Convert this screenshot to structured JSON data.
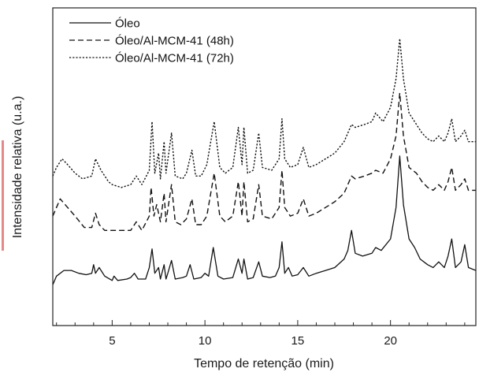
{
  "chart_data": {
    "type": "line",
    "title": "",
    "xlabel": "Tempo de retenção (min)",
    "ylabel": "Intensidade relativa (u.a.)",
    "xlim": [
      1.8,
      24.6
    ],
    "ylim": [
      0,
      1
    ],
    "x_ticks": [
      5,
      10,
      15,
      20
    ],
    "y_ticks_shown": false,
    "legend_position": "top-left",
    "series": [
      {
        "name": "Óleo",
        "style": "solid",
        "points": [
          [
            1.8,
            0.06
          ],
          [
            2.0,
            0.09
          ],
          [
            2.4,
            0.11
          ],
          [
            2.8,
            0.11
          ],
          [
            3.2,
            0.1
          ],
          [
            3.6,
            0.095
          ],
          [
            3.9,
            0.1
          ],
          [
            4.0,
            0.13
          ],
          [
            4.1,
            0.1
          ],
          [
            4.3,
            0.12
          ],
          [
            4.6,
            0.09
          ],
          [
            5.0,
            0.075
          ],
          [
            5.1,
            0.09
          ],
          [
            5.3,
            0.075
          ],
          [
            5.8,
            0.08
          ],
          [
            6.0,
            0.085
          ],
          [
            6.2,
            0.1
          ],
          [
            6.4,
            0.08
          ],
          [
            6.8,
            0.08
          ],
          [
            7.0,
            0.12
          ],
          [
            7.15,
            0.185
          ],
          [
            7.3,
            0.1
          ],
          [
            7.5,
            0.12
          ],
          [
            7.6,
            0.08
          ],
          [
            7.8,
            0.13
          ],
          [
            7.9,
            0.08
          ],
          [
            8.0,
            0.1
          ],
          [
            8.2,
            0.145
          ],
          [
            8.4,
            0.08
          ],
          [
            8.8,
            0.085
          ],
          [
            9.0,
            0.09
          ],
          [
            9.2,
            0.13
          ],
          [
            9.4,
            0.08
          ],
          [
            9.8,
            0.085
          ],
          [
            10.0,
            0.1
          ],
          [
            10.2,
            0.09
          ],
          [
            10.45,
            0.19
          ],
          [
            10.7,
            0.09
          ],
          [
            11.0,
            0.08
          ],
          [
            11.5,
            0.085
          ],
          [
            11.8,
            0.15
          ],
          [
            12.0,
            0.1
          ],
          [
            12.1,
            0.15
          ],
          [
            12.3,
            0.08
          ],
          [
            12.6,
            0.085
          ],
          [
            12.9,
            0.14
          ],
          [
            13.1,
            0.09
          ],
          [
            13.5,
            0.085
          ],
          [
            13.8,
            0.09
          ],
          [
            14.0,
            0.12
          ],
          [
            14.15,
            0.21
          ],
          [
            14.3,
            0.1
          ],
          [
            14.5,
            0.12
          ],
          [
            14.7,
            0.09
          ],
          [
            15.0,
            0.095
          ],
          [
            15.3,
            0.12
          ],
          [
            15.6,
            0.09
          ],
          [
            16.0,
            0.1
          ],
          [
            16.5,
            0.11
          ],
          [
            17.0,
            0.12
          ],
          [
            17.5,
            0.15
          ],
          [
            17.7,
            0.18
          ],
          [
            17.9,
            0.25
          ],
          [
            18.1,
            0.17
          ],
          [
            18.5,
            0.16
          ],
          [
            19.0,
            0.17
          ],
          [
            19.2,
            0.19
          ],
          [
            19.5,
            0.18
          ],
          [
            20.0,
            0.22
          ],
          [
            20.3,
            0.33
          ],
          [
            20.5,
            0.51
          ],
          [
            20.7,
            0.34
          ],
          [
            21.0,
            0.22
          ],
          [
            21.3,
            0.19
          ],
          [
            21.6,
            0.15
          ],
          [
            22.0,
            0.13
          ],
          [
            22.3,
            0.12
          ],
          [
            22.6,
            0.14
          ],
          [
            22.9,
            0.12
          ],
          [
            23.1,
            0.16
          ],
          [
            23.3,
            0.22
          ],
          [
            23.5,
            0.12
          ],
          [
            23.8,
            0.14
          ],
          [
            24.0,
            0.2
          ],
          [
            24.2,
            0.12
          ],
          [
            24.6,
            0.11
          ]
        ]
      },
      {
        "name": "Óleo/Al-MCM-41 (48h)",
        "style": "dashed",
        "points": [
          [
            1.8,
            0.3
          ],
          [
            2.0,
            0.33
          ],
          [
            2.2,
            0.36
          ],
          [
            2.6,
            0.33
          ],
          [
            3.0,
            0.3
          ],
          [
            3.5,
            0.26
          ],
          [
            3.9,
            0.26
          ],
          [
            4.1,
            0.31
          ],
          [
            4.3,
            0.27
          ],
          [
            4.6,
            0.25
          ],
          [
            5.0,
            0.25
          ],
          [
            5.4,
            0.25
          ],
          [
            6.0,
            0.25
          ],
          [
            6.3,
            0.28
          ],
          [
            6.6,
            0.25
          ],
          [
            7.0,
            0.3
          ],
          [
            7.1,
            0.4
          ],
          [
            7.25,
            0.3
          ],
          [
            7.4,
            0.34
          ],
          [
            7.6,
            0.28
          ],
          [
            7.8,
            0.38
          ],
          [
            7.9,
            0.28
          ],
          [
            8.2,
            0.41
          ],
          [
            8.4,
            0.28
          ],
          [
            8.7,
            0.27
          ],
          [
            9.0,
            0.29
          ],
          [
            9.3,
            0.36
          ],
          [
            9.5,
            0.27
          ],
          [
            9.8,
            0.27
          ],
          [
            10.1,
            0.3
          ],
          [
            10.5,
            0.45
          ],
          [
            10.8,
            0.3
          ],
          [
            11.1,
            0.28
          ],
          [
            11.5,
            0.3
          ],
          [
            11.8,
            0.42
          ],
          [
            12.0,
            0.3
          ],
          [
            12.1,
            0.42
          ],
          [
            12.3,
            0.28
          ],
          [
            12.6,
            0.29
          ],
          [
            12.9,
            0.41
          ],
          [
            13.1,
            0.3
          ],
          [
            13.6,
            0.29
          ],
          [
            14.0,
            0.33
          ],
          [
            14.15,
            0.46
          ],
          [
            14.3,
            0.33
          ],
          [
            14.6,
            0.3
          ],
          [
            15.0,
            0.31
          ],
          [
            15.3,
            0.36
          ],
          [
            15.6,
            0.3
          ],
          [
            16.0,
            0.31
          ],
          [
            16.5,
            0.33
          ],
          [
            17.0,
            0.35
          ],
          [
            17.5,
            0.38
          ],
          [
            17.9,
            0.44
          ],
          [
            18.1,
            0.43
          ],
          [
            18.6,
            0.44
          ],
          [
            19.0,
            0.45
          ],
          [
            19.2,
            0.46
          ],
          [
            19.6,
            0.45
          ],
          [
            20.0,
            0.5
          ],
          [
            20.3,
            0.58
          ],
          [
            20.5,
            0.73
          ],
          [
            20.7,
            0.58
          ],
          [
            21.0,
            0.47
          ],
          [
            21.4,
            0.45
          ],
          [
            21.7,
            0.42
          ],
          [
            22.0,
            0.4
          ],
          [
            22.3,
            0.39
          ],
          [
            22.6,
            0.41
          ],
          [
            22.9,
            0.39
          ],
          [
            23.1,
            0.42
          ],
          [
            23.3,
            0.47
          ],
          [
            23.5,
            0.39
          ],
          [
            23.8,
            0.41
          ],
          [
            24.0,
            0.43
          ],
          [
            24.2,
            0.39
          ],
          [
            24.6,
            0.39
          ]
        ]
      },
      {
        "name": "Óleo/Al-MCM-41 (72h)",
        "style": "dotted",
        "points": [
          [
            1.8,
            0.44
          ],
          [
            2.0,
            0.47
          ],
          [
            2.3,
            0.5
          ],
          [
            2.6,
            0.48
          ],
          [
            3.0,
            0.45
          ],
          [
            3.4,
            0.43
          ],
          [
            3.9,
            0.44
          ],
          [
            4.1,
            0.5
          ],
          [
            4.4,
            0.46
          ],
          [
            4.8,
            0.42
          ],
          [
            5.0,
            0.41
          ],
          [
            5.5,
            0.4
          ],
          [
            6.0,
            0.41
          ],
          [
            6.3,
            0.44
          ],
          [
            6.6,
            0.41
          ],
          [
            7.0,
            0.46
          ],
          [
            7.15,
            0.63
          ],
          [
            7.3,
            0.45
          ],
          [
            7.5,
            0.52
          ],
          [
            7.6,
            0.43
          ],
          [
            7.8,
            0.56
          ],
          [
            7.9,
            0.45
          ],
          [
            8.2,
            0.59
          ],
          [
            8.4,
            0.44
          ],
          [
            8.8,
            0.43
          ],
          [
            9.0,
            0.45
          ],
          [
            9.3,
            0.53
          ],
          [
            9.5,
            0.44
          ],
          [
            9.8,
            0.44
          ],
          [
            10.1,
            0.48
          ],
          [
            10.5,
            0.63
          ],
          [
            10.8,
            0.47
          ],
          [
            11.1,
            0.45
          ],
          [
            11.5,
            0.47
          ],
          [
            11.8,
            0.61
          ],
          [
            12.0,
            0.48
          ],
          [
            12.1,
            0.61
          ],
          [
            12.3,
            0.45
          ],
          [
            12.6,
            0.46
          ],
          [
            12.9,
            0.59
          ],
          [
            13.1,
            0.47
          ],
          [
            13.6,
            0.46
          ],
          [
            14.0,
            0.5
          ],
          [
            14.15,
            0.64
          ],
          [
            14.3,
            0.5
          ],
          [
            14.6,
            0.47
          ],
          [
            15.0,
            0.48
          ],
          [
            15.3,
            0.54
          ],
          [
            15.6,
            0.47
          ],
          [
            16.0,
            0.48
          ],
          [
            16.5,
            0.5
          ],
          [
            17.0,
            0.52
          ],
          [
            17.5,
            0.56
          ],
          [
            17.9,
            0.62
          ],
          [
            18.1,
            0.61
          ],
          [
            18.6,
            0.62
          ],
          [
            19.0,
            0.63
          ],
          [
            19.2,
            0.66
          ],
          [
            19.6,
            0.63
          ],
          [
            20.0,
            0.68
          ],
          [
            20.3,
            0.78
          ],
          [
            20.5,
            0.92
          ],
          [
            20.7,
            0.78
          ],
          [
            21.0,
            0.66
          ],
          [
            21.4,
            0.62
          ],
          [
            21.7,
            0.59
          ],
          [
            22.0,
            0.57
          ],
          [
            22.3,
            0.56
          ],
          [
            22.6,
            0.58
          ],
          [
            22.9,
            0.56
          ],
          [
            23.1,
            0.59
          ],
          [
            23.3,
            0.64
          ],
          [
            23.5,
            0.56
          ],
          [
            23.8,
            0.58
          ],
          [
            24.0,
            0.6
          ],
          [
            24.2,
            0.56
          ],
          [
            24.6,
            0.56
          ]
        ]
      }
    ]
  },
  "style": {
    "line_color": "#111111",
    "axis_color": "#222222",
    "side_mark_color": "#e3898a"
  }
}
